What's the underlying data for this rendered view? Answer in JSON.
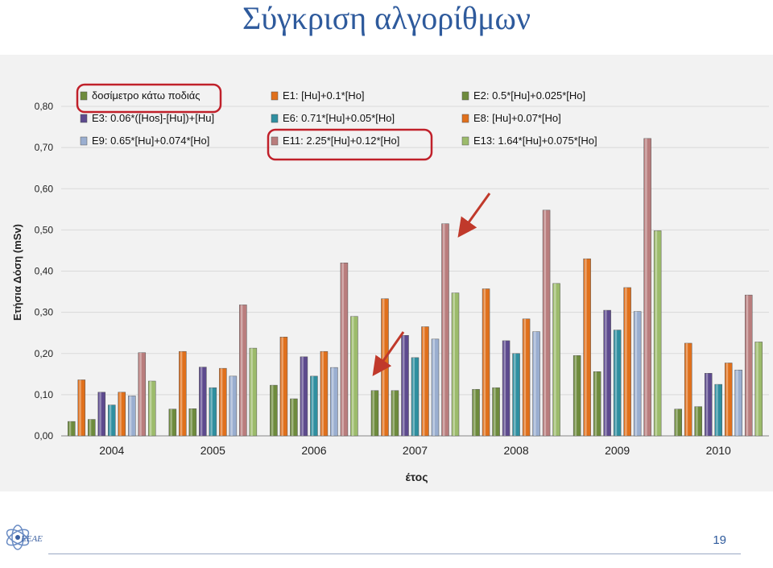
{
  "slide": {
    "title": "Σύγκριση αλγορίθμων",
    "page_number": "19"
  },
  "colors": {
    "green": "#6e8b3d",
    "orange": "#e0701c",
    "purple": "#5d4a8e",
    "teal": "#2f8fa0",
    "pink": "#b97d7d",
    "lightblue": "#9aaed0",
    "lightgreen": "#9cbb6b",
    "highlight": "#c0202a",
    "arrow": "#c0392b"
  },
  "chart_data": {
    "type": "bar",
    "categories": [
      "2004",
      "2005",
      "2006",
      "2007",
      "2008",
      "2009",
      "2010"
    ],
    "xlabel": "έτος",
    "ylabel": "Ετήσια Δόση (mSv)",
    "ylim": [
      0,
      0.8
    ],
    "yticks": [
      "0,00",
      "0,10",
      "0,20",
      "0,30",
      "0,40",
      "0,50",
      "0,60",
      "0,70",
      "0,80"
    ],
    "legend": "top",
    "series": [
      {
        "name": "δοσίμετρο κάτω ποδιάς",
        "color": "green",
        "values": [
          0.035,
          0.065,
          0.123,
          0.11,
          0.113,
          0.195,
          0.065
        ]
      },
      {
        "name": "E1: [Hu]+0.1*[Ho]",
        "color": "orange",
        "values": [
          0.136,
          0.205,
          0.24,
          0.333,
          0.357,
          0.43,
          0.225
        ]
      },
      {
        "name": "E2: 0.5*[Hu]+0.025*[Ho]",
        "color": "green",
        "values": [
          0.04,
          0.066,
          0.09,
          0.11,
          0.117,
          0.156,
          0.071
        ]
      },
      {
        "name": "E3: 0.06*([Hos]-[Hu])+[Hu]",
        "color": "purple",
        "values": [
          0.106,
          0.167,
          0.192,
          0.244,
          0.231,
          0.305,
          0.152
        ]
      },
      {
        "name": "E6: 0.71*[Hu]+0.05*[Ho]",
        "color": "teal",
        "values": [
          0.075,
          0.117,
          0.145,
          0.19,
          0.2,
          0.257,
          0.125
        ]
      },
      {
        "name": "E8: [Hu]+0.07*[Ho]",
        "color": "orange",
        "values": [
          0.106,
          0.164,
          0.205,
          0.265,
          0.284,
          0.36,
          0.177
        ]
      },
      {
        "name": "E9: 0.65*[Hu]+0.074*[Ho]",
        "color": "lightblue",
        "values": [
          0.097,
          0.145,
          0.166,
          0.235,
          0.253,
          0.302,
          0.16
        ]
      },
      {
        "name": "E11: 2.25*[Hu]+0.12*[Ho]",
        "color": "pink",
        "values": [
          0.202,
          0.318,
          0.42,
          0.515,
          0.548,
          0.722,
          0.342
        ]
      },
      {
        "name": "E13: 1.64*[Hu]+0.075*[Ho]",
        "color": "lightgreen",
        "values": [
          0.133,
          0.213,
          0.29,
          0.347,
          0.37,
          0.498,
          0.228
        ]
      }
    ]
  }
}
